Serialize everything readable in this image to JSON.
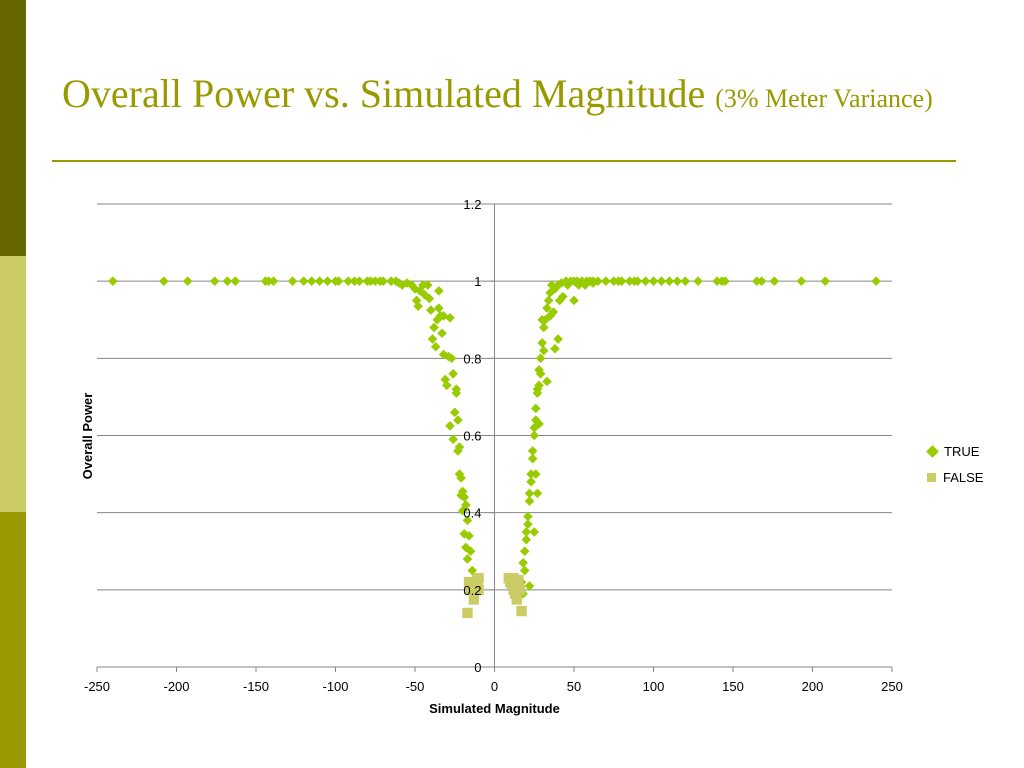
{
  "slide": {
    "title": "Overall Power vs. Simulated Magnitude",
    "subtitle": "(3% Meter Variance)",
    "colors": {
      "title": "#999900",
      "bar_dark": "#666600",
      "bar_light": "#cccc66",
      "bar_mid": "#999900"
    }
  },
  "chart_data": {
    "type": "scatter",
    "title": "",
    "xlabel": "Simulated Magnitude",
    "ylabel": "Overall Power",
    "xlim": [
      -250,
      250
    ],
    "ylim": [
      0,
      1.2
    ],
    "x_ticks": [
      -250,
      -200,
      -150,
      -100,
      -50,
      0,
      50,
      100,
      150,
      200,
      250
    ],
    "y_ticks": [
      0,
      0.2,
      0.4,
      0.6,
      0.8,
      1,
      1.2
    ],
    "x_tick_labels": [
      "-250",
      "-200",
      "-150",
      "-100",
      "-50",
      "0",
      "50",
      "100",
      "150",
      "200",
      "250"
    ],
    "y_tick_labels": [
      "0",
      "0.2",
      "0.4",
      "0.6",
      "0.8",
      "1",
      "1.2"
    ],
    "grid": "horizontal",
    "legend": "right",
    "series": [
      {
        "name": "TRUE",
        "marker": "diamond",
        "color": "#99cc00",
        "points": [
          [
            -240,
            1
          ],
          [
            -208,
            1
          ],
          [
            -193,
            1
          ],
          [
            -176,
            1
          ],
          [
            -168,
            1
          ],
          [
            -163,
            1
          ],
          [
            -144,
            1
          ],
          [
            -142,
            1
          ],
          [
            -139,
            1
          ],
          [
            -127,
            1
          ],
          [
            -120,
            1
          ],
          [
            -115,
            1
          ],
          [
            -110,
            1
          ],
          [
            -105,
            1
          ],
          [
            -100,
            1
          ],
          [
            -98,
            1
          ],
          [
            -92,
            1
          ],
          [
            -88,
            1
          ],
          [
            -85,
            1
          ],
          [
            -80,
            1
          ],
          [
            -78,
            1
          ],
          [
            -75,
            1
          ],
          [
            -72,
            1
          ],
          [
            -70,
            1
          ],
          [
            -65,
            1
          ],
          [
            -62,
            1
          ],
          [
            -60,
            0.995
          ],
          [
            -58,
            0.99
          ],
          [
            -55,
            0.995
          ],
          [
            -52,
            0.99
          ],
          [
            -50,
            0.98
          ],
          [
            -49,
            0.95
          ],
          [
            -48,
            0.935
          ],
          [
            -47,
            0.975
          ],
          [
            -45,
            0.99
          ],
          [
            -44,
            0.965
          ],
          [
            -42,
            0.99
          ],
          [
            -41,
            0.955
          ],
          [
            -40,
            0.925
          ],
          [
            -39,
            0.85
          ],
          [
            -38,
            0.88
          ],
          [
            -37,
            0.83
          ],
          [
            -36,
            0.9
          ],
          [
            -35,
            0.975
          ],
          [
            -34,
            0.91
          ],
          [
            -33,
            0.865
          ],
          [
            -32,
            0.81
          ],
          [
            -31,
            0.745
          ],
          [
            -30,
            0.73
          ],
          [
            -29,
            0.805
          ],
          [
            -28,
            0.625
          ],
          [
            -27,
            0.8
          ],
          [
            -26,
            0.59
          ],
          [
            -25,
            0.66
          ],
          [
            -24,
            0.71
          ],
          [
            -23,
            0.64
          ],
          [
            -22,
            0.57
          ],
          [
            -21,
            0.49
          ],
          [
            -20,
            0.455
          ],
          [
            -19,
            0.44
          ],
          [
            -18,
            0.42
          ],
          [
            -17,
            0.38
          ],
          [
            -16,
            0.34
          ],
          [
            -15,
            0.3
          ],
          [
            -14,
            0.25
          ],
          [
            -13,
            0.22
          ],
          [
            -35,
            0.93
          ],
          [
            -32,
            0.91
          ],
          [
            -28,
            0.905
          ],
          [
            -26,
            0.76
          ],
          [
            -24,
            0.72
          ],
          [
            -23,
            0.56
          ],
          [
            -22,
            0.5
          ],
          [
            -21,
            0.445
          ],
          [
            -20,
            0.405
          ],
          [
            -19,
            0.345
          ],
          [
            -18,
            0.31
          ],
          [
            -17,
            0.28
          ],
          [
            -16,
            0.21
          ],
          [
            17,
            0.22
          ],
          [
            18,
            0.27
          ],
          [
            19,
            0.3
          ],
          [
            20,
            0.35
          ],
          [
            21,
            0.39
          ],
          [
            22,
            0.45
          ],
          [
            23,
            0.5
          ],
          [
            24,
            0.56
          ],
          [
            25,
            0.62
          ],
          [
            26,
            0.67
          ],
          [
            27,
            0.72
          ],
          [
            28,
            0.77
          ],
          [
            29,
            0.8
          ],
          [
            30,
            0.84
          ],
          [
            31,
            0.88
          ],
          [
            32,
            0.9
          ],
          [
            33,
            0.93
          ],
          [
            34,
            0.95
          ],
          [
            35,
            0.97
          ],
          [
            36,
            0.99
          ],
          [
            37,
            0.92
          ],
          [
            38,
            0.98
          ],
          [
            40,
            0.99
          ],
          [
            42,
            0.995
          ],
          [
            45,
            1
          ],
          [
            48,
            1
          ],
          [
            50,
            1
          ],
          [
            52,
            1
          ],
          [
            55,
            1
          ],
          [
            58,
            1
          ],
          [
            60,
            1
          ],
          [
            62,
            1
          ],
          [
            65,
            1
          ],
          [
            70,
            1
          ],
          [
            75,
            1
          ],
          [
            78,
            1
          ],
          [
            80,
            1
          ],
          [
            85,
            1
          ],
          [
            88,
            1
          ],
          [
            90,
            1
          ],
          [
            95,
            1
          ],
          [
            100,
            1
          ],
          [
            105,
            1
          ],
          [
            110,
            1
          ],
          [
            115,
            1
          ],
          [
            120,
            1
          ],
          [
            128,
            1
          ],
          [
            140,
            1
          ],
          [
            143,
            1
          ],
          [
            145,
            1
          ],
          [
            165,
            1
          ],
          [
            168,
            1
          ],
          [
            176,
            1
          ],
          [
            193,
            1
          ],
          [
            208,
            1
          ],
          [
            240,
            1
          ],
          [
            18,
            0.19
          ],
          [
            19,
            0.25
          ],
          [
            20,
            0.33
          ],
          [
            21,
            0.37
          ],
          [
            22,
            0.43
          ],
          [
            23,
            0.48
          ],
          [
            24,
            0.54
          ],
          [
            25,
            0.6
          ],
          [
            26,
            0.64
          ],
          [
            27,
            0.71
          ],
          [
            28,
            0.73
          ],
          [
            29,
            0.76
          ],
          [
            30,
            0.9
          ],
          [
            31,
            0.82
          ],
          [
            33,
            0.74
          ],
          [
            35,
            0.91
          ],
          [
            38,
            0.825
          ],
          [
            40,
            0.85
          ],
          [
            41,
            0.95
          ],
          [
            43,
            0.96
          ],
          [
            46,
            0.99
          ],
          [
            50,
            0.95
          ],
          [
            53,
            0.99
          ],
          [
            57,
            0.99
          ],
          [
            62,
            0.995
          ],
          [
            25,
            0.35
          ],
          [
            22,
            0.21
          ],
          [
            28,
            0.63
          ],
          [
            27,
            0.45
          ],
          [
            26,
            0.5
          ]
        ]
      },
      {
        "name": "FALSE",
        "marker": "square",
        "color": "#cccc66",
        "points": [
          [
            -17,
            0.14
          ],
          [
            -15,
            0.2
          ],
          [
            -14,
            0.22
          ],
          [
            -13,
            0.21
          ],
          [
            -13,
            0.175
          ],
          [
            -11,
            0.225
          ],
          [
            -10,
            0.23
          ],
          [
            -10,
            0.2
          ],
          [
            -12,
            0.21
          ],
          [
            -16,
            0.22
          ],
          [
            9,
            0.23
          ],
          [
            10,
            0.22
          ],
          [
            11,
            0.215
          ],
          [
            12,
            0.2
          ],
          [
            13,
            0.19
          ],
          [
            14,
            0.175
          ],
          [
            15,
            0.225
          ],
          [
            16,
            0.2
          ],
          [
            17,
            0.145
          ],
          [
            12,
            0.23
          ]
        ]
      }
    ]
  }
}
